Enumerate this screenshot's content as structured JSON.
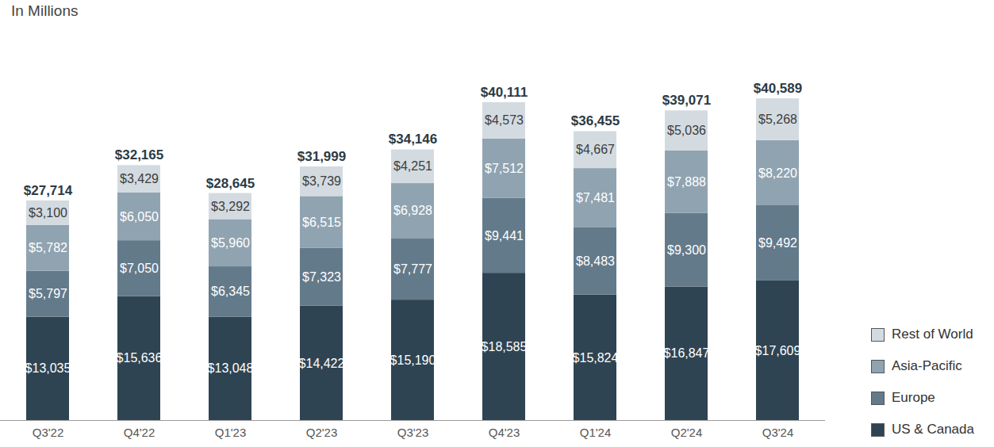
{
  "chart_data": {
    "type": "bar",
    "title": "In Millions",
    "stacked": true,
    "data_labels": true,
    "tick_labels": "x",
    "legend": "right",
    "categories": [
      "Q3'22",
      "Q4'22",
      "Q1'23",
      "Q2'23",
      "Q3'23",
      "Q4'23",
      "Q1'24",
      "Q2'24",
      "Q3'24"
    ],
    "ylim": [
      0,
      45000
    ],
    "yticks": [],
    "totals": [
      27714,
      32165,
      28645,
      31999,
      34146,
      40111,
      36455,
      39071,
      40589
    ],
    "total_labels": [
      "$27,714",
      "$32,165",
      "$28,645",
      "$31,999",
      "$34,146",
      "$40,111",
      "$36,455",
      "$39,071",
      "$40,589"
    ],
    "series": [
      {
        "name": "US & Canada",
        "color": "#2f4452",
        "values": [
          13035,
          15636,
          13048,
          14422,
          15190,
          18585,
          15824,
          16847,
          17609
        ],
        "value_labels": [
          "$13,035",
          "$15,636",
          "$13,048",
          "$14,422",
          "$15,190",
          "$18,585",
          "$15,824",
          "$16,847",
          "$17,609"
        ]
      },
      {
        "name": "Europe",
        "color": "#637a8a",
        "values": [
          5797,
          7050,
          6345,
          7323,
          7777,
          9441,
          8483,
          9300,
          9492
        ],
        "value_labels": [
          "$5,797",
          "$7,050",
          "$6,345",
          "$7,323",
          "$7,777",
          "$9,441",
          "$8,483",
          "$9,300",
          "$9,492"
        ]
      },
      {
        "name": "Asia-Pacific",
        "color": "#90a3b1",
        "values": [
          5782,
          6050,
          5960,
          6515,
          6928,
          7512,
          7481,
          7888,
          8220
        ],
        "value_labels": [
          "$5,782",
          "$6,050",
          "$5,960",
          "$6,515",
          "$6,928",
          "$7,512",
          "$7,481",
          "$7,888",
          "$8,220"
        ]
      },
      {
        "name": "Rest of World",
        "color": "#d3dbe1",
        "values": [
          3100,
          3429,
          3292,
          3739,
          4251,
          4573,
          4667,
          5036,
          5268
        ],
        "value_labels": [
          "$3,100",
          "$3,429",
          "$3,292",
          "$3,739",
          "$4,251",
          "$4,573",
          "$4,667",
          "$5,036",
          "$5,268"
        ]
      }
    ]
  }
}
